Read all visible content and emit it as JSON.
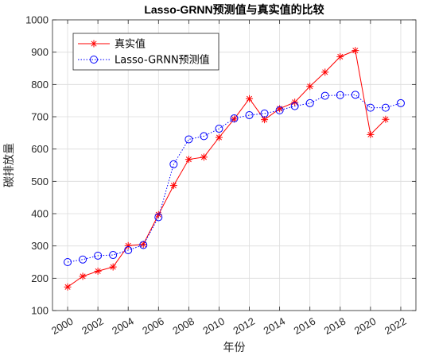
{
  "chart_data": {
    "type": "line",
    "title": "Lasso-GRNN预测值与真实值的比较",
    "xlabel": "年份",
    "ylabel": "碳排放量",
    "xlim": [
      1999,
      2023
    ],
    "ylim": [
      100,
      1000
    ],
    "x_ticks": [
      2000,
      2002,
      2004,
      2006,
      2008,
      2010,
      2012,
      2014,
      2016,
      2018,
      2020,
      2022
    ],
    "y_ticks": [
      100,
      200,
      300,
      400,
      500,
      600,
      700,
      800,
      900,
      1000
    ],
    "grid": true,
    "legend_position": "top-left",
    "series": [
      {
        "name": "真实值",
        "color": "#ff0000",
        "marker": "asterisk",
        "line_style": "solid",
        "x": [
          2000,
          2001,
          2002,
          2003,
          2004,
          2005,
          2006,
          2007,
          2008,
          2009,
          2010,
          2011,
          2012,
          2013,
          2014,
          2015,
          2016,
          2017,
          2018,
          2019,
          2020,
          2021
        ],
        "values": [
          173,
          206,
          222,
          235,
          301,
          305,
          397,
          487,
          568,
          575,
          636,
          693,
          756,
          691,
          725,
          745,
          794,
          838,
          886,
          905,
          645,
          692
        ]
      },
      {
        "name": "Lasso-GRNN预测值",
        "color": "#0000ff",
        "marker": "circle",
        "line_style": "dotted",
        "x": [
          2000,
          2001,
          2002,
          2003,
          2004,
          2005,
          2006,
          2007,
          2008,
          2009,
          2010,
          2011,
          2012,
          2013,
          2014,
          2015,
          2016,
          2017,
          2018,
          2019,
          2020,
          2021,
          2022
        ],
        "values": [
          250,
          258,
          270,
          272,
          287,
          303,
          389,
          553,
          630,
          640,
          663,
          695,
          705,
          710,
          720,
          733,
          742,
          765,
          767,
          768,
          728,
          728,
          742
        ]
      }
    ]
  }
}
